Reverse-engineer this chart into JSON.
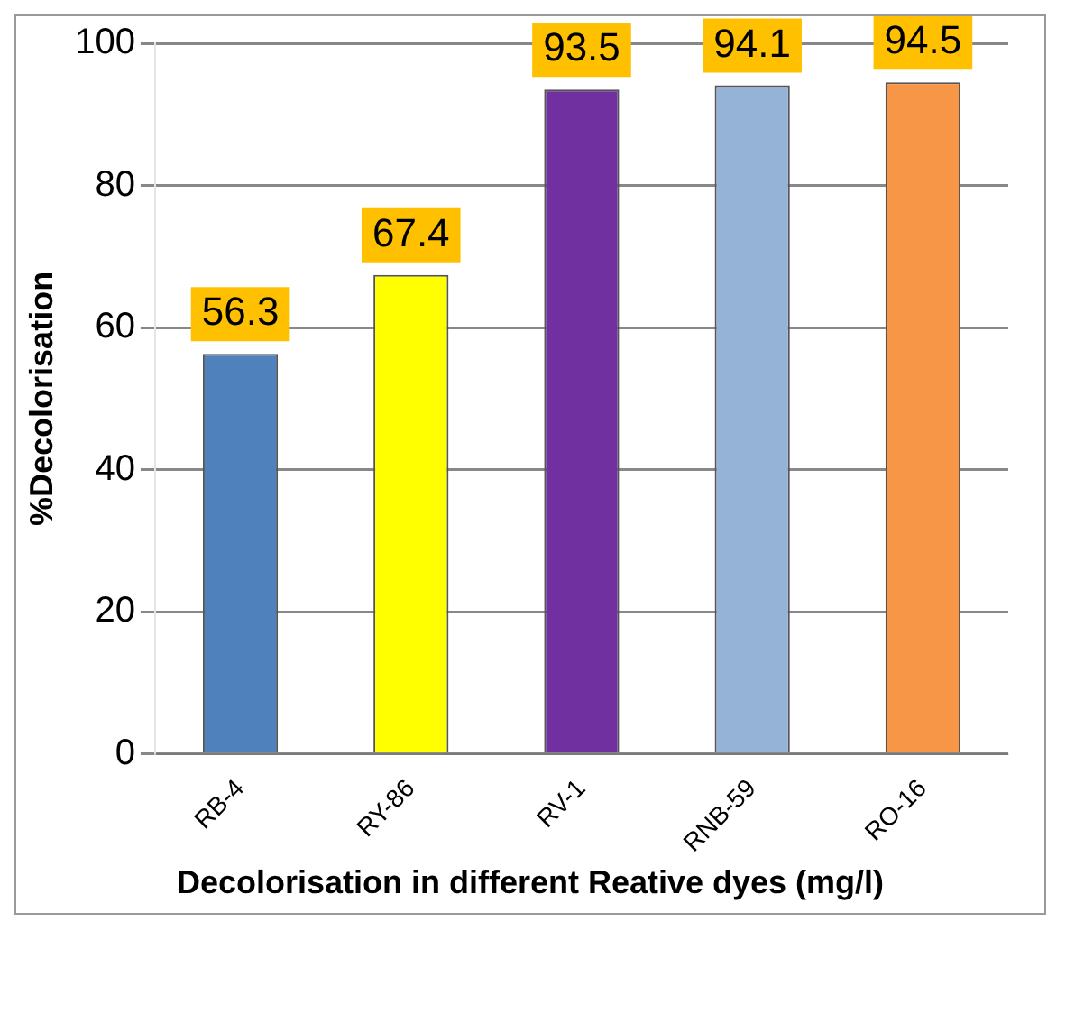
{
  "chart_data": {
    "type": "bar",
    "xlabel": "Decolorisation in different Reative dyes (mg/l)",
    "ylabel": "%Decolorisation",
    "categories": [
      "RB-4",
      "RY-86",
      "RV-1",
      "RNB-59",
      "RO-16"
    ],
    "values": [
      56.3,
      67.4,
      93.5,
      94.1,
      94.5
    ],
    "colors": [
      "#4f81bd",
      "#ffff00",
      "#7030a0",
      "#95b3d7",
      "#f79646"
    ],
    "ylim": [
      0,
      100
    ],
    "yticks": [
      0,
      20,
      40,
      60,
      80,
      100
    ],
    "grid": "y",
    "data_labels": true
  }
}
